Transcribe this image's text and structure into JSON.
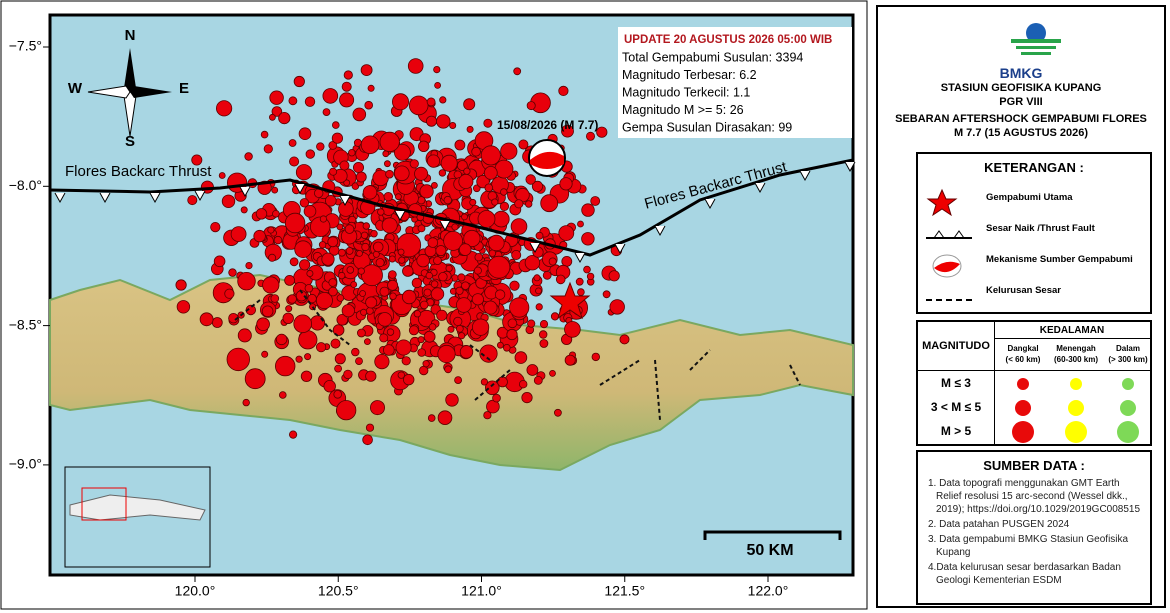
{
  "map": {
    "xticks": [
      {
        "value": 120.0,
        "label": "120.0°"
      },
      {
        "value": 120.5,
        "label": "120.5°"
      },
      {
        "value": 121.0,
        "label": "121.0°"
      },
      {
        "value": 121.5,
        "label": "121.5°"
      },
      {
        "value": 122.0,
        "label": "122.0°"
      }
    ],
    "yticks": [
      {
        "value": -7.5,
        "label": "−7.5°"
      },
      {
        "value": -8.0,
        "label": "−8.0°"
      },
      {
        "value": -8.5,
        "label": "−8.5°"
      },
      {
        "value": -9.0,
        "label": "−9.0°"
      }
    ],
    "compass": {
      "north": "N",
      "south": "S",
      "east": "E",
      "west": "W"
    },
    "fault_labels": [
      "Flores Backarc Thrust",
      "Flores Backarc Thrust"
    ],
    "mainshock_label": "15/08/2026 (M 7.7)",
    "scale_bar": "50 KM"
  },
  "info_box": {
    "update": "UPDATE 20 AGUSTUS 2026 05:00 WIB",
    "lines": [
      "Total Gempabumi Susulan: 3394",
      "Magnitudo Terbesar: 6.2",
      "Magnitudo Terkecil: 1.1",
      "Magnitudo M >= 5: 26",
      "Gempa Susulan Dirasakan: 99"
    ]
  },
  "header": {
    "agency": "BMKG",
    "station": "STASIUN GEOFISIKA KUPANG",
    "region": "PGR VIII",
    "title": "SEBARAN AFTERSHOCK GEMPABUMI FLORES",
    "subtitle": "M 7.7 (15 AGUSTUS 2026)"
  },
  "legend": {
    "title": "KETERANGAN :",
    "items": [
      "Gempabumi Utama",
      "Sesar Naik /Thrust Fault",
      "Mekanisme Sumber Gempabumi",
      "Kelurusan Sesar"
    ]
  },
  "magnitude_table": {
    "col_header": "MAGNITUDO",
    "depth_header": "KEDALAMAN",
    "depths": [
      {
        "name": "Dangkal",
        "range": "(< 60 km)",
        "color": "#e80a0a"
      },
      {
        "name": "Menengah",
        "range": "(60-300 km)",
        "color": "#ffff00"
      },
      {
        "name": "Dalam",
        "range": "(> 300 km)",
        "color": "#7ed957"
      }
    ],
    "rows": [
      "M ≤ 3",
      "3 < M ≤ 5",
      "M > 5"
    ]
  },
  "sources": {
    "title": "SUMBER DATA :",
    "items": [
      "1. Data topografi menggunakan GMT Earth Relief resolusi 15 arc-second (Wessel dkk., 2019); https://doi.org/10.1029/2019GC008515",
      "2. Data patahan PUSGEN 2024",
      "3. Data gempabumi BMKG Stasiun Geofisika Kupang",
      "4.Data kelurusan sesar berdasarkan Badan Geologi Kementerian ESDM"
    ]
  }
}
